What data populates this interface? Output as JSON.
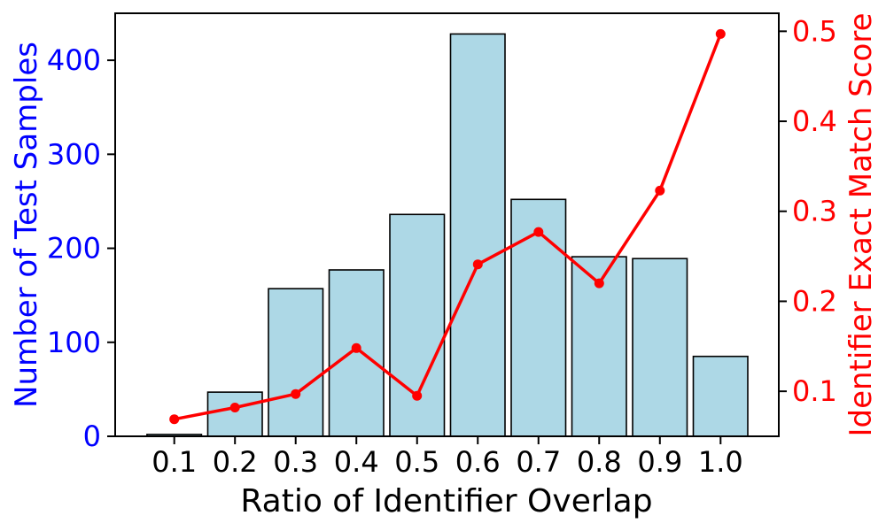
{
  "chart_data": {
    "type": "bar",
    "subtype": "bar-with-line-overlay",
    "title": "",
    "xlabel": "Ratio of Identifier Overlap",
    "ylabel_left": "Number of Test Samples",
    "ylabel_right": "Identifier Exact Match Score",
    "categories": [
      "0.1",
      "0.2",
      "0.3",
      "0.4",
      "0.5",
      "0.6",
      "0.7",
      "0.8",
      "0.9",
      "1.0"
    ],
    "series": [
      {
        "name": "Number of Test Samples",
        "type": "bar",
        "axis": "left",
        "values": [
          2,
          47,
          157,
          177,
          236,
          428,
          252,
          191,
          189,
          85
        ]
      },
      {
        "name": "Identifier Exact Match Score",
        "type": "line",
        "axis": "right",
        "values": [
          0.069,
          0.082,
          0.097,
          0.148,
          0.095,
          0.241,
          0.277,
          0.22,
          0.323,
          0.497
        ]
      }
    ],
    "ylim_left": [
      0,
      450
    ],
    "ylim_right": [
      0.05,
      0.52
    ],
    "yticks_left": [
      "0",
      "100",
      "200",
      "300",
      "400"
    ],
    "yticks_left_values": [
      0,
      100,
      200,
      300,
      400
    ],
    "yticks_right": [
      "0.1",
      "0.2",
      "0.3",
      "0.4",
      "0.5"
    ],
    "yticks_right_values": [
      0.1,
      0.2,
      0.3,
      0.4,
      0.5
    ],
    "grid": false,
    "legend_position": "none",
    "colors": {
      "left_axis_text": "#0000FF",
      "right_axis_text": "#FF0000",
      "x_axis_text": "#000000",
      "bar_fill": "#ADD8E6",
      "bar_edge": "#000000",
      "line": "#FF0000",
      "marker": "#FF0000",
      "spine": "#000000",
      "background": "#FFFFFF"
    }
  }
}
